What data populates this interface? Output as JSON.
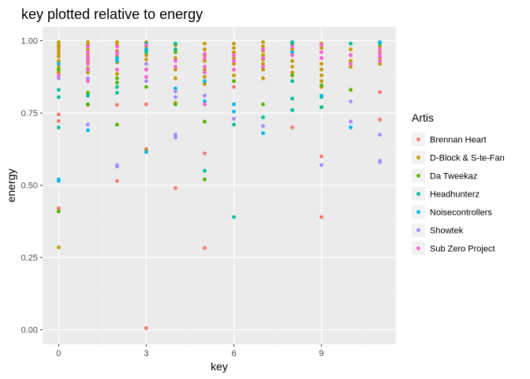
{
  "chart_data": {
    "type": "scatter",
    "title": "key plotted relative to energy",
    "xlabel": "key",
    "ylabel": "energy",
    "xlim": [
      -0.55,
      11.55
    ],
    "ylim": [
      -0.05,
      1.048
    ],
    "x_ticks": [
      0,
      3,
      6,
      9
    ],
    "x_tick_labels": [
      "0",
      "3",
      "6",
      "9"
    ],
    "y_ticks": [
      0,
      0.25,
      0.5,
      0.75,
      1
    ],
    "y_tick_labels": [
      "0.00",
      "0.25",
      "0.50",
      "0.75",
      "1.00"
    ],
    "grid": true,
    "legend_position": "right",
    "legend": {
      "title": "Artis",
      "entries": [
        "Brennan Heart",
        "D-Block & S-te-Fan",
        "Da Tweekaz",
        "Headhunterz",
        "Noisecontrollers",
        "Showtek",
        "Sub Zero Project"
      ]
    },
    "series": [
      {
        "name": "Brennan Heart",
        "color": "#F8766D",
        "points": [
          [
            0,
            0.745
          ],
          [
            0,
            0.722
          ],
          [
            0,
            0.42
          ],
          [
            0,
            0.285
          ],
          [
            1,
            0.778
          ],
          [
            2,
            0.778
          ],
          [
            2,
            0.515
          ],
          [
            3,
            0.78
          ],
          [
            3,
            0.625
          ],
          [
            3,
            0.006
          ],
          [
            4,
            0.49
          ],
          [
            5,
            0.61
          ],
          [
            5,
            0.283
          ],
          [
            6,
            0.92
          ],
          [
            6,
            0.84
          ],
          [
            8,
            0.7
          ],
          [
            9,
            0.6
          ],
          [
            9,
            0.39
          ],
          [
            11,
            0.822
          ],
          [
            11,
            0.727
          ]
        ]
      },
      {
        "name": "D-Block & S-te-Fan",
        "color": "#C49A00",
        "points": [
          [
            0,
            0.995
          ],
          [
            0,
            0.985
          ],
          [
            0,
            0.975
          ],
          [
            0,
            0.965
          ],
          [
            0,
            0.955
          ],
          [
            0,
            0.945
          ],
          [
            0,
            0.93
          ],
          [
            0,
            0.91
          ],
          [
            0,
            0.89
          ],
          [
            0,
            0.87
          ],
          [
            0,
            0.285
          ],
          [
            1,
            0.995
          ],
          [
            1,
            0.985
          ],
          [
            1,
            0.97
          ],
          [
            1,
            0.955
          ],
          [
            1,
            0.94
          ],
          [
            1,
            0.925
          ],
          [
            1,
            0.905
          ],
          [
            1,
            0.89
          ],
          [
            2,
            0.995
          ],
          [
            2,
            0.985
          ],
          [
            2,
            0.965
          ],
          [
            2,
            0.945
          ],
          [
            2,
            0.925
          ],
          [
            2,
            0.885
          ],
          [
            3,
            0.995
          ],
          [
            3,
            0.98
          ],
          [
            3,
            0.965
          ],
          [
            3,
            0.95
          ],
          [
            3,
            0.935
          ],
          [
            3,
            0.92
          ],
          [
            3,
            0.9
          ],
          [
            3,
            0.62
          ],
          [
            4,
            0.985
          ],
          [
            4,
            0.97
          ],
          [
            4,
            0.94
          ],
          [
            4,
            0.9
          ],
          [
            4,
            0.87
          ],
          [
            4,
            0.785
          ],
          [
            5,
            0.99
          ],
          [
            5,
            0.97
          ],
          [
            5,
            0.95
          ],
          [
            5,
            0.93
          ],
          [
            5,
            0.9
          ],
          [
            5,
            0.875
          ],
          [
            5,
            0.85
          ],
          [
            6,
            0.99
          ],
          [
            6,
            0.975
          ],
          [
            6,
            0.96
          ],
          [
            6,
            0.94
          ],
          [
            6,
            0.92
          ],
          [
            6,
            0.9
          ],
          [
            6,
            0.88
          ],
          [
            7,
            0.995
          ],
          [
            7,
            0.98
          ],
          [
            7,
            0.965
          ],
          [
            7,
            0.95
          ],
          [
            7,
            0.935
          ],
          [
            7,
            0.92
          ],
          [
            7,
            0.9
          ],
          [
            7,
            0.87
          ],
          [
            8,
            0.995
          ],
          [
            8,
            0.985
          ],
          [
            8,
            0.97
          ],
          [
            8,
            0.95
          ],
          [
            8,
            0.93
          ],
          [
            8,
            0.91
          ],
          [
            8,
            0.89
          ],
          [
            9,
            0.99
          ],
          [
            9,
            0.975
          ],
          [
            9,
            0.96
          ],
          [
            9,
            0.94
          ],
          [
            9,
            0.92
          ],
          [
            9,
            0.9
          ],
          [
            9,
            0.88
          ],
          [
            9,
            0.86
          ],
          [
            9,
            0.84
          ],
          [
            10,
            0.99
          ],
          [
            10,
            0.97
          ],
          [
            10,
            0.95
          ],
          [
            10,
            0.93
          ],
          [
            10,
            0.91
          ],
          [
            11,
            0.995
          ],
          [
            11,
            0.98
          ],
          [
            11,
            0.96
          ],
          [
            11,
            0.94
          ],
          [
            11,
            0.92
          ]
        ]
      },
      {
        "name": "Da Tweekaz",
        "color": "#53B400",
        "points": [
          [
            0,
            0.9
          ],
          [
            0,
            0.41
          ],
          [
            1,
            0.82
          ],
          [
            1,
            0.78
          ],
          [
            2,
            0.87
          ],
          [
            2,
            0.855
          ],
          [
            2,
            0.71
          ],
          [
            3,
            0.97
          ],
          [
            3,
            0.84
          ],
          [
            4,
            0.99
          ],
          [
            4,
            0.96
          ],
          [
            4,
            0.78
          ],
          [
            5,
            0.72
          ],
          [
            5,
            0.52
          ],
          [
            6,
            0.86
          ],
          [
            7,
            0.78
          ],
          [
            8,
            0.88
          ],
          [
            9,
            0.845
          ],
          [
            9,
            0.77
          ],
          [
            10,
            0.83
          ]
        ]
      },
      {
        "name": "Headhunterz",
        "color": "#00C094",
        "points": [
          [
            0,
            0.83
          ],
          [
            0,
            0.805
          ],
          [
            0,
            0.7
          ],
          [
            1,
            0.81
          ],
          [
            2,
            0.84
          ],
          [
            2,
            0.82
          ],
          [
            3,
            0.99
          ],
          [
            3,
            0.96
          ],
          [
            4,
            0.99
          ],
          [
            4,
            0.97
          ],
          [
            5,
            0.55
          ],
          [
            6,
            0.71
          ],
          [
            6,
            0.39
          ],
          [
            7,
            0.735
          ],
          [
            8,
            0.995
          ],
          [
            8,
            0.99
          ],
          [
            8,
            0.86
          ],
          [
            8,
            0.8
          ],
          [
            8,
            0.76
          ],
          [
            9,
            0.805
          ],
          [
            9,
            0.77
          ],
          [
            10,
            0.99
          ],
          [
            11,
            0.99
          ]
        ]
      },
      {
        "name": "Noisecontrollers",
        "color": "#00B6EB",
        "points": [
          [
            0,
            0.92
          ],
          [
            0,
            0.52
          ],
          [
            0,
            0.515
          ],
          [
            1,
            0.69
          ],
          [
            2,
            0.94
          ],
          [
            2,
            0.93
          ],
          [
            3,
            0.97
          ],
          [
            3,
            0.615
          ],
          [
            4,
            0.835
          ],
          [
            5,
            0.86
          ],
          [
            5,
            0.79
          ],
          [
            6,
            0.78
          ],
          [
            6,
            0.755
          ],
          [
            7,
            0.68
          ],
          [
            8,
            0.96
          ],
          [
            9,
            0.81
          ],
          [
            10,
            0.7
          ],
          [
            11,
            0.995
          ]
        ]
      },
      {
        "name": "Showtek",
        "color": "#A58AFF",
        "points": [
          [
            0,
            0.87
          ],
          [
            1,
            0.87
          ],
          [
            1,
            0.71
          ],
          [
            2,
            0.57
          ],
          [
            2,
            0.565
          ],
          [
            3,
            0.92
          ],
          [
            3,
            0.86
          ],
          [
            4,
            0.825
          ],
          [
            4,
            0.805
          ],
          [
            4,
            0.675
          ],
          [
            4,
            0.665
          ],
          [
            5,
            0.81
          ],
          [
            6,
            0.73
          ],
          [
            7,
            0.705
          ],
          [
            9,
            0.57
          ],
          [
            10,
            0.79
          ],
          [
            10,
            0.72
          ],
          [
            11,
            0.675
          ],
          [
            11,
            0.585
          ],
          [
            11,
            0.58
          ]
        ]
      },
      {
        "name": "Sub Zero Project",
        "color": "#FB61D7",
        "points": [
          [
            0,
            0.88
          ],
          [
            1,
            0.98
          ],
          [
            1,
            0.96
          ],
          [
            1,
            0.945
          ],
          [
            1,
            0.935
          ],
          [
            1,
            0.92
          ],
          [
            1,
            0.9
          ],
          [
            1,
            0.86
          ],
          [
            2,
            0.98
          ],
          [
            2,
            0.96
          ],
          [
            2,
            0.955
          ],
          [
            2,
            0.9
          ],
          [
            3,
            0.985
          ],
          [
            3,
            0.9
          ],
          [
            3,
            0.875
          ],
          [
            4,
            0.93
          ],
          [
            4,
            0.91
          ],
          [
            5,
            0.955
          ],
          [
            5,
            0.94
          ],
          [
            5,
            0.91
          ],
          [
            5,
            0.89
          ],
          [
            5,
            0.78
          ],
          [
            6,
            0.95
          ],
          [
            6,
            0.93
          ],
          [
            6,
            0.9
          ],
          [
            7,
            0.97
          ],
          [
            7,
            0.94
          ],
          [
            7,
            0.91
          ],
          [
            8,
            0.98
          ],
          [
            8,
            0.95
          ],
          [
            9,
            0.985
          ],
          [
            9,
            0.96
          ],
          [
            9,
            0.94
          ],
          [
            10,
            0.95
          ],
          [
            10,
            0.92
          ],
          [
            11,
            0.97
          ],
          [
            11,
            0.955
          ],
          [
            11,
            0.945
          ],
          [
            11,
            0.93
          ]
        ]
      }
    ]
  }
}
